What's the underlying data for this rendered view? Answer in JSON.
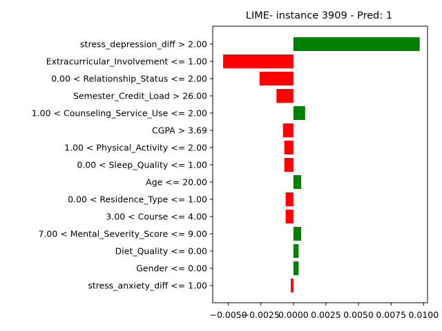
{
  "chart_data": {
    "type": "bar",
    "orientation": "horizontal",
    "title": "LIME- instance 3909 - Pred: 1",
    "xlabel": "",
    "ylabel": "",
    "xlim": [
      -0.0062,
      0.0103
    ],
    "xticks": [
      -0.005,
      -0.0025,
      0.0,
      0.0025,
      0.005,
      0.0075,
      0.01
    ],
    "xtick_labels": [
      "−0.0050",
      "−0.0025",
      "0.0000",
      "0.0025",
      "0.0050",
      "0.0075",
      "0.0100"
    ],
    "grid": false,
    "legend": "none",
    "colors": {
      "positive": "#008000",
      "negative": "#ff0000"
    },
    "categories": [
      "stress_depression_diff > 2.00",
      "Extracurricular_Involvement <= 1.00",
      "0.00 < Relationship_Status <= 2.00",
      "Semester_Credit_Load > 26.00",
      "1.00 < Counseling_Service_Use <= 2.00",
      "CGPA > 3.69",
      "1.00 < Physical_Activity <= 2.00",
      "0.00 < Sleep_Quality <= 1.00",
      "Age <= 20.00",
      "0.00 < Residence_Type <= 1.00",
      "3.00 < Course <= 4.00",
      "7.00 < Mental_Severity_Score <= 9.00",
      "Diet_Quality <= 0.00",
      "Gender <= 0.00",
      "stress_anxiety_diff <= 1.00"
    ],
    "values": [
      0.0097,
      -0.0054,
      -0.0026,
      -0.0013,
      0.0009,
      -0.0008,
      -0.0007,
      -0.0007,
      0.0006,
      -0.0006,
      -0.0006,
      0.0006,
      0.0004,
      0.0004,
      -0.0002
    ]
  }
}
